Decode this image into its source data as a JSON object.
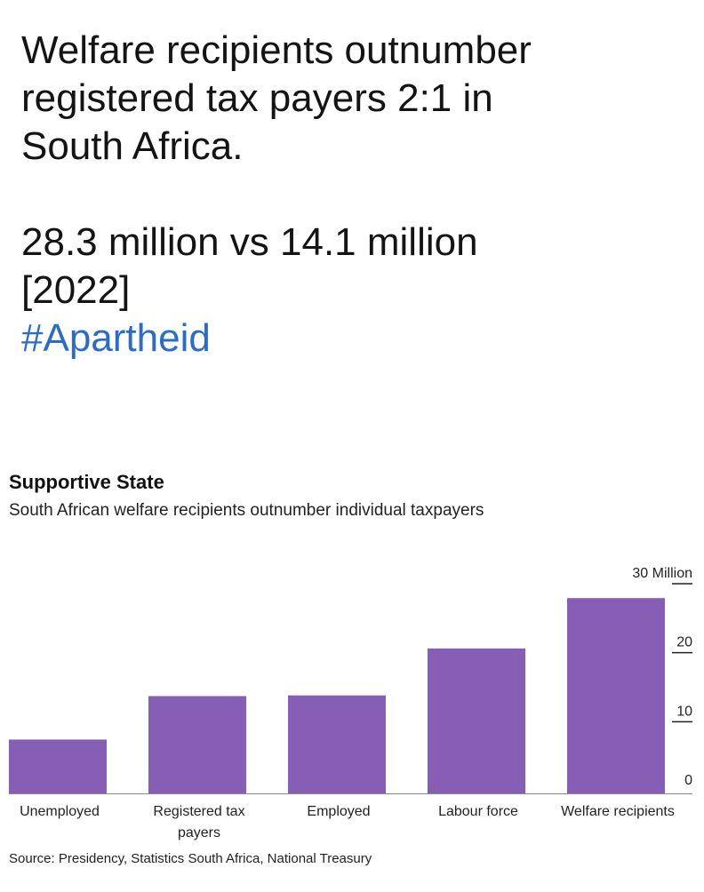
{
  "post": {
    "lines": [
      "Welfare recipients outnumber",
      "registered tax payers 2:1 in",
      "South Africa."
    ],
    "stat_lines": [
      "28.3 million vs 14.1 million",
      "[2022]"
    ],
    "hashtag": "#Apartheid",
    "hashtag_color": "#2b6cc9"
  },
  "chart_data": {
    "type": "bar",
    "title": "Supportive State",
    "subtitle": "South African welfare recipients outnumber individual taxpayers",
    "source": "Source: Presidency, Statistics South Africa, National Treasury",
    "categories": [
      [
        "Unemployed"
      ],
      [
        "Registered tax",
        "payers"
      ],
      [
        "Employed"
      ],
      [
        "Labour force"
      ],
      [
        "Welfare recipients"
      ]
    ],
    "values": [
      7.8,
      14.1,
      14.2,
      21.0,
      28.3
    ],
    "y_ticks": [
      "0",
      "10",
      "20",
      "30 Million"
    ],
    "y_tick_values": [
      0,
      10,
      20,
      30
    ],
    "ylim": [
      0,
      30
    ],
    "y_axis_side": "right",
    "bar_color": "#865eb5",
    "grid": false
  }
}
